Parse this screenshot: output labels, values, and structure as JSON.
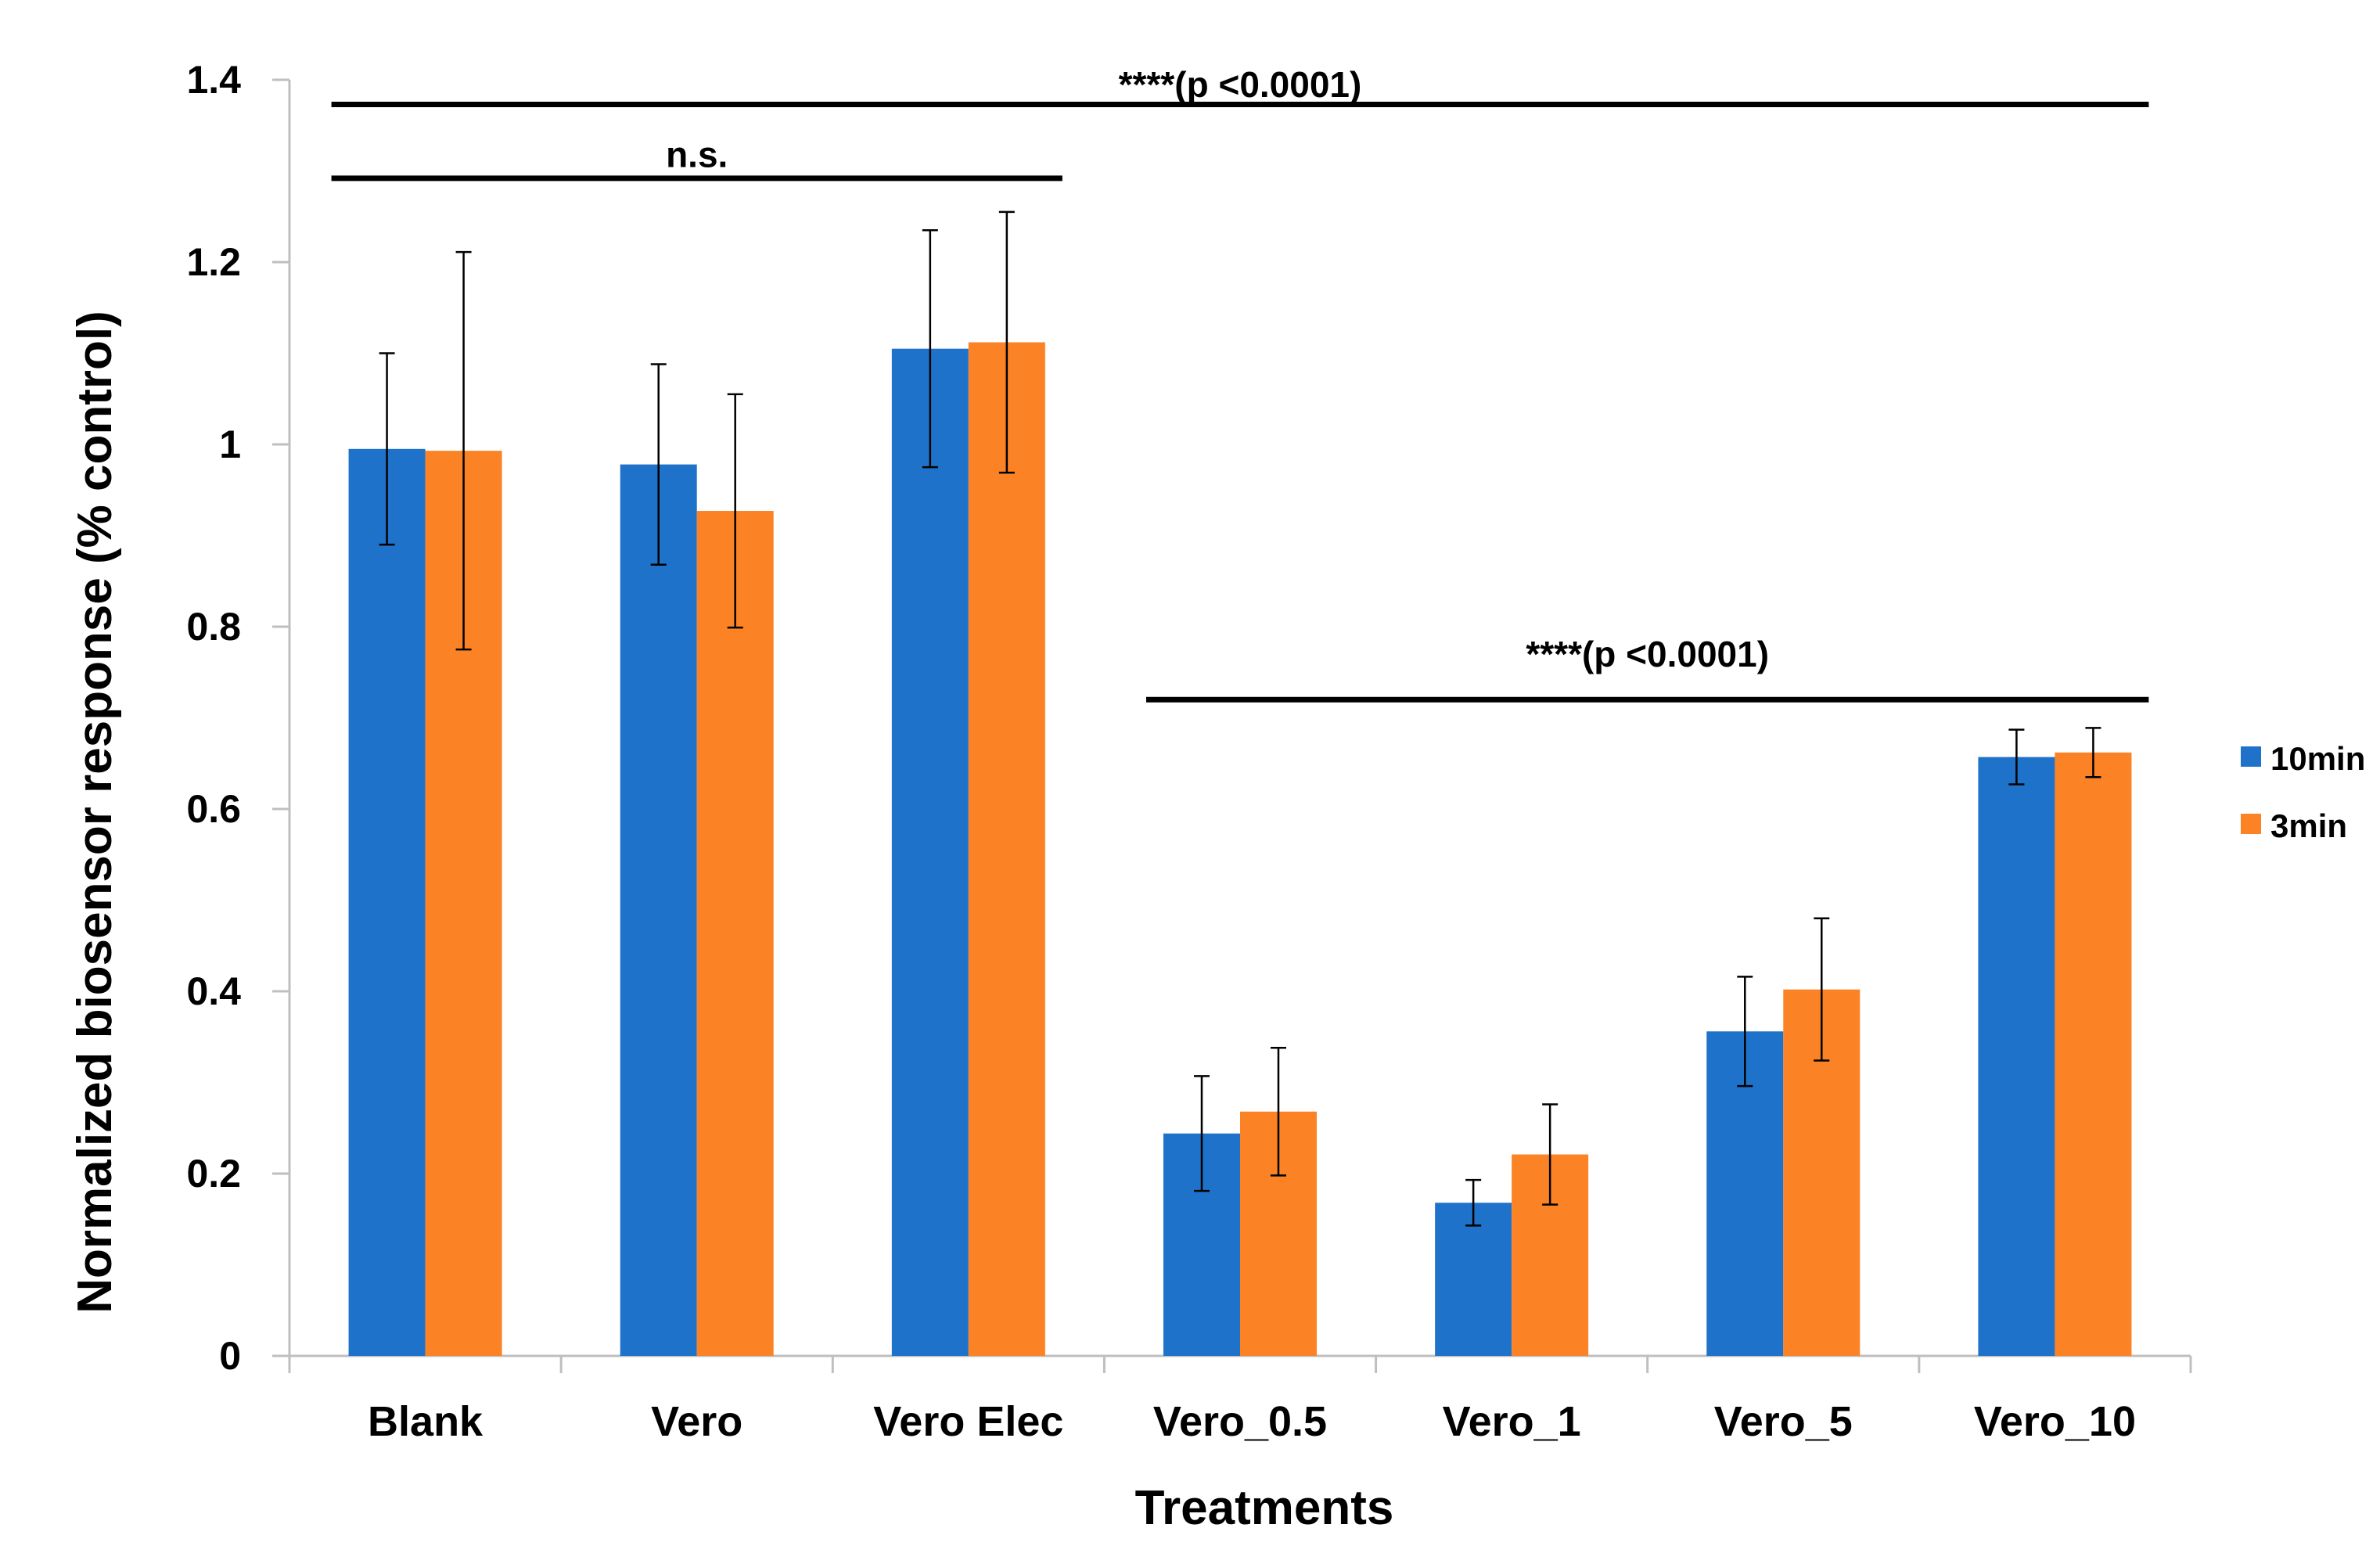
{
  "chart_data": {
    "type": "bar",
    "title": "",
    "xlabel": "Treatments",
    "ylabel": "Normalized biosensor response (% control)",
    "ylim": [
      0,
      1.4
    ],
    "yticks": [
      "0",
      "0.2",
      "0.4",
      "0.6",
      "0.8",
      "1",
      "1.2",
      "1.4"
    ],
    "ytick_values": [
      0,
      0.2,
      0.4,
      0.6,
      0.8,
      1.0,
      1.2,
      1.4
    ],
    "grid": false,
    "legend_position": "right",
    "categories": [
      "Blank",
      "Vero",
      "Vero Elec",
      "Vero_0.5",
      "Vero_1",
      "Vero_5",
      "Vero_10"
    ],
    "series": [
      {
        "name": "10min",
        "color": "#1f72c9",
        "values": [
          0.995,
          0.978,
          1.105,
          0.244,
          0.168,
          0.356,
          0.657
        ],
        "errors": [
          0.105,
          0.11,
          0.13,
          0.063,
          0.025,
          0.06,
          0.03
        ]
      },
      {
        "name": "3min",
        "color": "#fb8225",
        "values": [
          0.993,
          0.927,
          1.112,
          0.268,
          0.221,
          0.402,
          0.662
        ],
        "errors": [
          0.218,
          0.128,
          0.143,
          0.07,
          0.055,
          0.078,
          0.027
        ]
      }
    ],
    "annotations": [
      {
        "text": "****(p <0.0001)",
        "from": "Blank",
        "to": "Vero_10",
        "y": 1.373,
        "label_y": 1.395
      },
      {
        "text": "n.s.",
        "from": "Blank",
        "to": "Vero Elec",
        "y": 1.292,
        "label_y": 1.318
      },
      {
        "text": "****(p <0.0001)",
        "from": "Vero_0.5",
        "to": "Vero_10",
        "y": 0.72,
        "label_y": 0.77
      }
    ]
  }
}
